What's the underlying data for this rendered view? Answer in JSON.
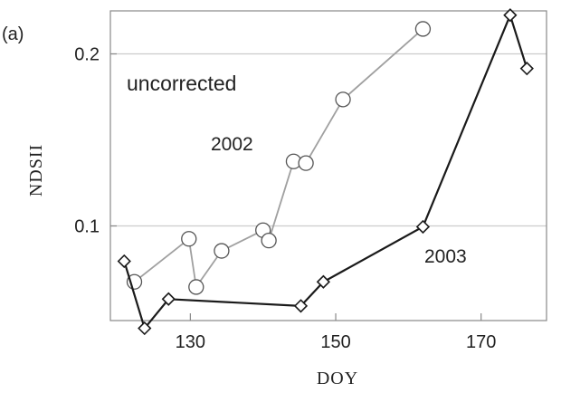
{
  "chart_data": {
    "type": "line",
    "panel_label": "(a)",
    "xlabel": "DOY",
    "ylabel": "NDSII",
    "xlim": [
      119,
      179
    ],
    "ylim": [
      0.045,
      0.225
    ],
    "xticks": [
      130,
      150,
      170
    ],
    "xtick_labels": [
      "130",
      "150",
      "170"
    ],
    "yticks": [
      0.1,
      0.2
    ],
    "ytick_labels": [
      "0.1",
      "0.2"
    ],
    "grid": "horizontal",
    "annotations": [
      "uncorrected",
      "2002",
      "2003"
    ],
    "series": [
      {
        "name": "2002",
        "marker": "circle",
        "color": "#a0a0a0",
        "x": [
          122.3,
          129.8,
          130.8,
          134.3,
          140.0,
          140.8,
          144.2,
          145.9,
          151.0,
          162.0
        ],
        "y": [
          0.0675,
          0.0925,
          0.0645,
          0.0855,
          0.0975,
          0.0915,
          0.1375,
          0.1365,
          0.1735,
          0.2145
        ]
      },
      {
        "name": "2003",
        "marker": "diamond",
        "color": "#1a1a1a",
        "x": [
          120.9,
          123.7,
          127.0,
          145.2,
          148.3,
          162.0,
          174.0,
          176.3
        ],
        "y": [
          0.0795,
          0.0405,
          0.0575,
          0.0535,
          0.0675,
          0.0995,
          0.2225,
          0.1915
        ]
      }
    ]
  }
}
